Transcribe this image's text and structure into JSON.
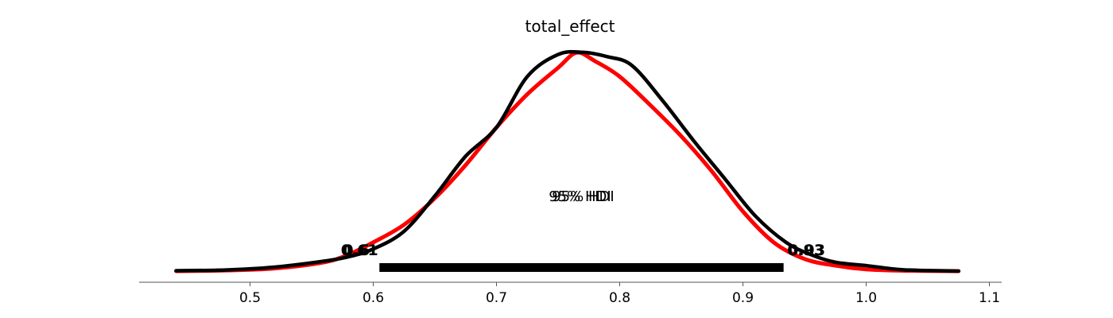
{
  "chart_data": {
    "type": "line",
    "title": "total_effect",
    "xlabel": "",
    "ylabel": "",
    "xlim": [
      0.41,
      1.11
    ],
    "ylim": [
      0,
      1
    ],
    "grid": false,
    "x_ticks": [
      0.5,
      0.6,
      0.7,
      0.8,
      0.9,
      1.0,
      1.1
    ],
    "x_tick_labels": [
      "0.5",
      "0.6",
      "0.7",
      "0.8",
      "0.9",
      "1.0",
      "1.1"
    ],
    "series": [
      {
        "color": "#ff0000",
        "points": [
          [
            0.44,
            0.0
          ],
          [
            0.48,
            0.003
          ],
          [
            0.52,
            0.012
          ],
          [
            0.56,
            0.04
          ],
          [
            0.58,
            0.075
          ],
          [
            0.6,
            0.13
          ],
          [
            0.625,
            0.21
          ],
          [
            0.65,
            0.33
          ],
          [
            0.675,
            0.48
          ],
          [
            0.7,
            0.65
          ],
          [
            0.725,
            0.8
          ],
          [
            0.75,
            0.92
          ],
          [
            0.765,
            0.988
          ],
          [
            0.78,
            0.95
          ],
          [
            0.8,
            0.88
          ],
          [
            0.825,
            0.75
          ],
          [
            0.85,
            0.61
          ],
          [
            0.875,
            0.45
          ],
          [
            0.9,
            0.27
          ],
          [
            0.925,
            0.13
          ],
          [
            0.95,
            0.055
          ],
          [
            0.975,
            0.025
          ],
          [
            1.0,
            0.008
          ],
          [
            1.03,
            0.002
          ],
          [
            1.075,
            0.0
          ]
        ]
      },
      {
        "color": "#000000",
        "points": [
          [
            0.44,
            0.002
          ],
          [
            0.48,
            0.005
          ],
          [
            0.52,
            0.018
          ],
          [
            0.56,
            0.045
          ],
          [
            0.58,
            0.065
          ],
          [
            0.6,
            0.1
          ],
          [
            0.625,
            0.18
          ],
          [
            0.65,
            0.34
          ],
          [
            0.675,
            0.52
          ],
          [
            0.7,
            0.65
          ],
          [
            0.725,
            0.88
          ],
          [
            0.75,
            0.98
          ],
          [
            0.77,
            0.99
          ],
          [
            0.79,
            0.97
          ],
          [
            0.81,
            0.93
          ],
          [
            0.835,
            0.77
          ],
          [
            0.86,
            0.59
          ],
          [
            0.885,
            0.42
          ],
          [
            0.91,
            0.25
          ],
          [
            0.935,
            0.13
          ],
          [
            0.955,
            0.075
          ],
          [
            0.975,
            0.04
          ],
          [
            1.0,
            0.025
          ],
          [
            1.03,
            0.006
          ],
          [
            1.075,
            0.0
          ]
        ]
      }
    ],
    "hdi": {
      "label": "95% HDI",
      "low": 0.605,
      "high": 0.933,
      "low_labels": [
        "0.6",
        "0.61"
      ],
      "high_labels": [
        "0.93",
        "0.93"
      ]
    }
  }
}
